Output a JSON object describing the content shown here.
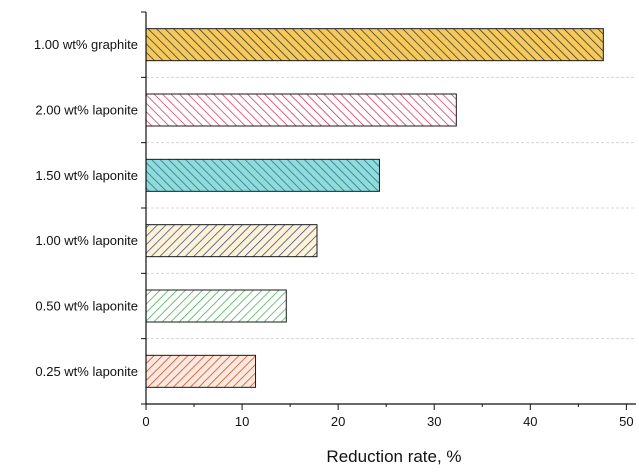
{
  "chart_data": {
    "type": "bar",
    "orientation": "horizontal",
    "title": "",
    "xlabel": "Reduction rate, %",
    "ylabel": "",
    "xlim": [
      0,
      51
    ],
    "xticks": [
      "0",
      "10",
      "20",
      "30",
      "40",
      "50"
    ],
    "grid": "horizontal dashed between categories",
    "categories": [
      "1.00 wt% graphite",
      "2.00 wt% laponite",
      "1.50 wt% laponite",
      "1.00 wt% laponite",
      "0.50 wt% laponite",
      "0.25 wt% laponite"
    ],
    "values": [
      47.6,
      32.3,
      24.3,
      17.8,
      14.6,
      11.4
    ],
    "bar_styles": [
      {
        "fill": "#f5c95c",
        "hatch": "#2a2a2a",
        "dir": "back"
      },
      {
        "fill": "#ffffff",
        "hatch": "#d62050",
        "dir": "back"
      },
      {
        "fill": "#8fdcda",
        "hatch": "#1f6a8a",
        "dir": "back"
      },
      {
        "fill": "#fff3d6",
        "hatch": "#2a3c8c",
        "dir": "forward"
      },
      {
        "fill": "#ffffff",
        "hatch": "#3aa84a",
        "dir": "forward"
      },
      {
        "fill": "#fbe9dd",
        "hatch": "#c8391f",
        "dir": "forward"
      }
    ]
  }
}
